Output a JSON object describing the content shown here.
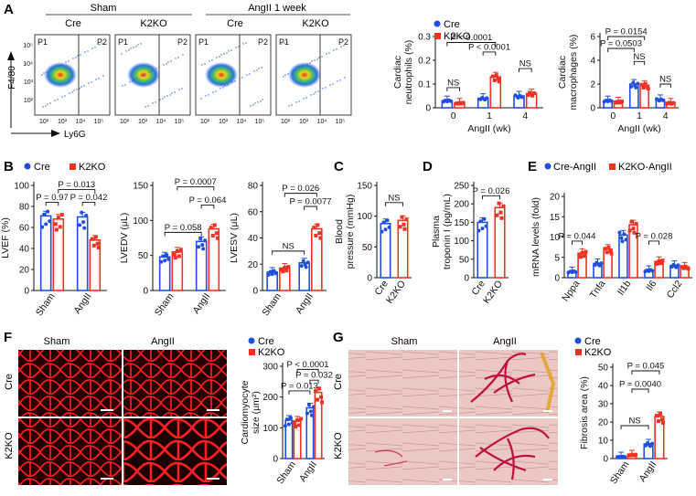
{
  "colors": {
    "cre": "#1f4fe0",
    "k2ko": "#ee3322",
    "red_tissue": "#d81010",
    "black": "#111111"
  },
  "panels": {
    "A": {
      "letter": "A",
      "sham_label": "Sham",
      "angii_label": "AngII 1 week",
      "cre": "Cre",
      "k2ko": "K2KO",
      "p1": "P1",
      "p2": "P2",
      "y_axis": "F4/80",
      "x_axis": "Ly6G",
      "ticks": [
        "10²",
        "10³",
        "10⁴",
        "10⁵"
      ]
    },
    "B": {
      "letter": "B"
    },
    "C": {
      "letter": "C"
    },
    "D": {
      "letter": "D"
    },
    "E": {
      "letter": "E"
    },
    "F": {
      "letter": "F",
      "sham_label": "Sham",
      "angii_label": "AngII",
      "cre": "Cre",
      "k2ko": "K2KO"
    },
    "G": {
      "letter": "G",
      "sham_label": "Sham",
      "angii_label": "AngII",
      "cre": "Cre",
      "k2ko": "K2KO"
    }
  },
  "legends": {
    "two": {
      "cre": "Cre",
      "k2ko": "K2KO"
    },
    "angii": {
      "cre": "Cre-AngII",
      "k2ko": "K2KO-AngII"
    }
  },
  "chart_data": [
    {
      "id": "neutrophils",
      "type": "bar",
      "ylabel": "Cardiac neutrophils (%)",
      "xlabel": "AngII (wk)",
      "categories": [
        "0",
        "1",
        "4"
      ],
      "ylim": [
        0,
        0.3
      ],
      "yticks": [
        0,
        0.1,
        0.2,
        0.3
      ],
      "series": [
        {
          "name": "Cre",
          "values": [
            0.03,
            0.04,
            0.05
          ]
        },
        {
          "name": "K2KO",
          "values": [
            0.02,
            0.13,
            0.06
          ]
        }
      ],
      "annotations": [
        "P < 0.0001",
        "P < 0.0001",
        "NS",
        "NS"
      ]
    },
    {
      "id": "macrophages",
      "type": "bar",
      "ylabel": "Cardiac macrophages (%)",
      "xlabel": "AngII (wk)",
      "categories": [
        "0",
        "1",
        "4"
      ],
      "ylim": [
        0,
        6
      ],
      "yticks": [
        0,
        2,
        4,
        6
      ],
      "series": [
        {
          "name": "Cre",
          "values": [
            0.6,
            2.0,
            0.7
          ]
        },
        {
          "name": "K2KO",
          "values": [
            0.5,
            1.9,
            0.4
          ]
        }
      ],
      "annotations": [
        "P = 0.0154",
        "P = 0.0503",
        "NS",
        "NS"
      ]
    },
    {
      "id": "lvef",
      "type": "bar",
      "ylabel": "LVEF (%)",
      "categories": [
        "Sham",
        "AngII"
      ],
      "ylim": [
        0,
        100
      ],
      "yticks": [
        0,
        20,
        40,
        60,
        80,
        100
      ],
      "series": [
        {
          "name": "Cre",
          "values": [
            71,
            70
          ]
        },
        {
          "name": "K2KO",
          "values": [
            68,
            48
          ]
        }
      ],
      "annotations": [
        "P = 0.97",
        "P = 0.013",
        "P = 0.042"
      ]
    },
    {
      "id": "lvedv",
      "type": "bar",
      "ylabel": "LVEDV (μL)",
      "categories": [
        "Sham",
        "AngII"
      ],
      "ylim": [
        0,
        150
      ],
      "yticks": [
        0,
        50,
        100,
        150
      ],
      "series": [
        {
          "name": "Cre",
          "values": [
            48,
            70
          ]
        },
        {
          "name": "K2KO",
          "values": [
            55,
            88
          ]
        }
      ],
      "annotations": [
        "P = 0.0007",
        "P = 0.058",
        "P = 0.064"
      ]
    },
    {
      "id": "lvesv",
      "type": "bar",
      "ylabel": "LVESV (μL)",
      "categories": [
        "Sham",
        "AngII"
      ],
      "ylim": [
        0,
        80
      ],
      "yticks": [
        0,
        20,
        40,
        60,
        80
      ],
      "series": [
        {
          "name": "Cre",
          "values": [
            14,
            21
          ]
        },
        {
          "name": "K2KO",
          "values": [
            17,
            47
          ]
        }
      ],
      "annotations": [
        "P = 0.026",
        "P = 0.0077",
        "NS"
      ]
    },
    {
      "id": "bp",
      "type": "bar",
      "ylabel": "Blood pressure (mmHg)",
      "categories": [
        "Cre",
        "K2KO"
      ],
      "ylim": [
        0,
        150
      ],
      "yticks": [
        0,
        50,
        100,
        150
      ],
      "series": [
        {
          "name": "values",
          "values": [
            88,
            93
          ]
        }
      ],
      "annotations": [
        "NS"
      ]
    },
    {
      "id": "troponin",
      "type": "bar",
      "ylabel": "Plasma troponin I (pg/mL)",
      "categories": [
        "Cre",
        "K2KO"
      ],
      "ylim": [
        0,
        250
      ],
      "yticks": [
        0,
        50,
        100,
        150,
        200,
        250
      ],
      "series": [
        {
          "name": "values",
          "values": [
            150,
            190
          ]
        }
      ],
      "annotations": [
        "P = 0.026"
      ]
    },
    {
      "id": "mrna",
      "type": "bar",
      "ylabel": "mRNA levels (fold)",
      "categories": [
        "Nppa",
        "Tnfa",
        "Il1b",
        "Il6",
        "Ccl2"
      ],
      "ylim": [
        0,
        20
      ],
      "yticks": [
        0,
        5,
        10,
        15,
        20
      ],
      "series": [
        {
          "name": "Cre-AngII",
          "values": [
            1.5,
            3.5,
            10.5,
            1.8,
            3.0
          ]
        },
        {
          "name": "K2KO-AngII",
          "values": [
            6,
            7,
            13,
            4,
            2.6
          ]
        }
      ],
      "annotations": [
        "P = 0.044",
        "P = 0.028"
      ]
    },
    {
      "id": "cm_size",
      "type": "bar",
      "ylabel": "Cardiomyocyte size (μm²)",
      "categories": [
        "Sham",
        "AngII"
      ],
      "ylim": [
        0,
        300
      ],
      "yticks": [
        0,
        100,
        200,
        300
      ],
      "series": [
        {
          "name": "Cre",
          "values": [
            125,
            165
          ]
        },
        {
          "name": "K2KO",
          "values": [
            122,
            215
          ]
        }
      ],
      "annotations": [
        "P < 0.0001",
        "P = 0.013",
        "P = 0.032"
      ]
    },
    {
      "id": "fibrosis",
      "type": "bar",
      "ylabel": "Fibrosis area (%)",
      "categories": [
        "Sham",
        "AngII"
      ],
      "ylim": [
        0,
        50
      ],
      "yticks": [
        0,
        10,
        20,
        30,
        40,
        50
      ],
      "series": [
        {
          "name": "Cre",
          "values": [
            1,
            8
          ]
        },
        {
          "name": "K2KO",
          "values": [
            2,
            23
          ]
        }
      ],
      "annotations": [
        "P = 0.045",
        "P = 0.0040",
        "NS"
      ]
    }
  ]
}
